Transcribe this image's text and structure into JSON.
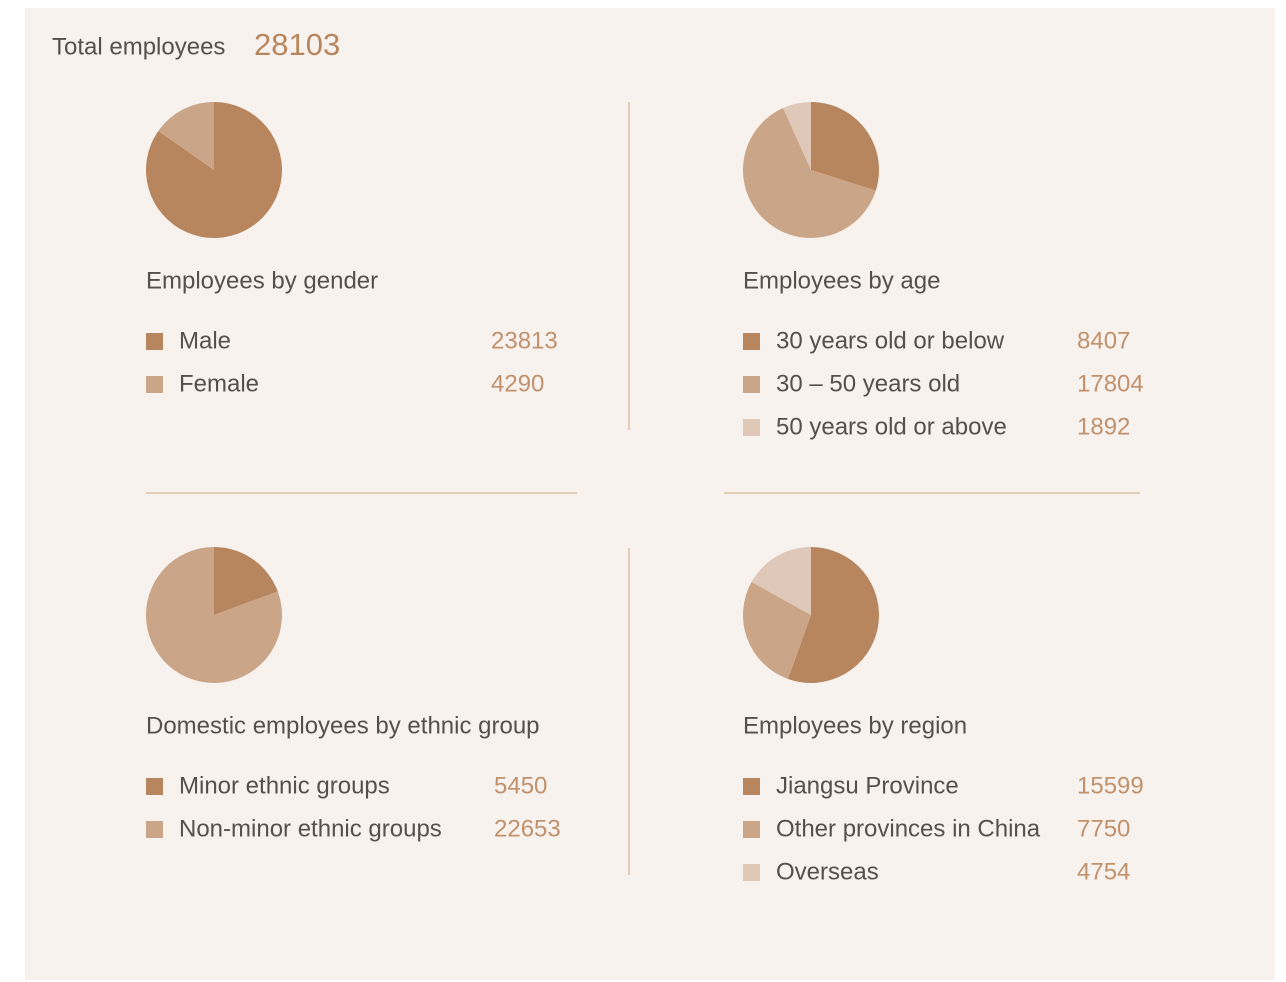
{
  "header": {
    "label": "Total employees",
    "total": 28103
  },
  "chart_data": [
    {
      "type": "pie",
      "title": "Employees by gender",
      "categories": [
        "Male",
        "Female"
      ],
      "values": [
        23813,
        4290
      ],
      "colors": [
        "#b8865e",
        "#cba588"
      ]
    },
    {
      "type": "pie",
      "title": "Employees by age",
      "categories": [
        "30 years old or below",
        "30 – 50 years old",
        "50 years old or above"
      ],
      "values": [
        8407,
        17804,
        1892
      ],
      "colors": [
        "#b8865e",
        "#cba588",
        "#e0c8b8"
      ]
    },
    {
      "type": "pie",
      "title": "Domestic employees by ethnic group",
      "categories": [
        "Minor ethnic groups",
        "Non-minor ethnic groups"
      ],
      "values": [
        5450,
        22653
      ],
      "colors": [
        "#b8865e",
        "#cba588"
      ]
    },
    {
      "type": "pie",
      "title": "Employees by region",
      "categories": [
        "Jiangsu Province",
        "Other provinces in China",
        "Overseas"
      ],
      "values": [
        15599,
        7750,
        4754
      ],
      "colors": [
        "#b8865e",
        "#cba588",
        "#e0c8b8"
      ]
    }
  ]
}
